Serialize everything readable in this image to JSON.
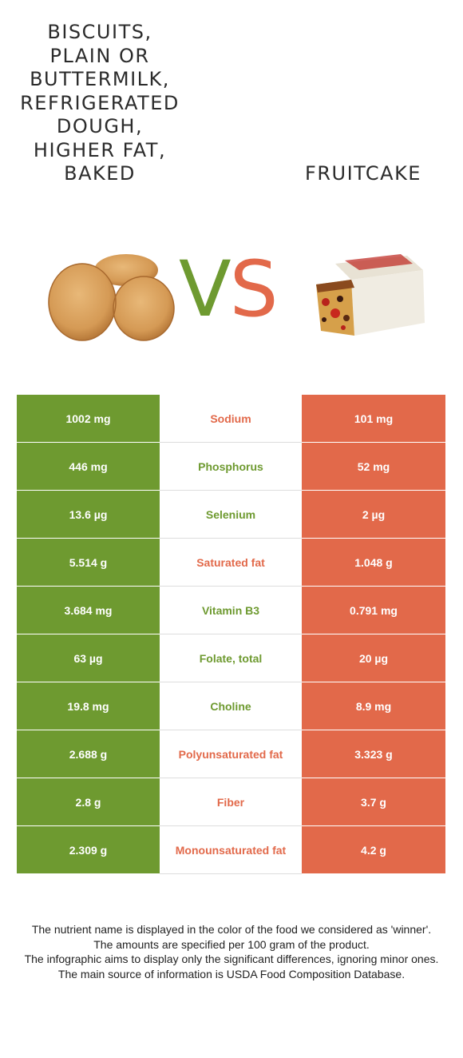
{
  "left_food": {
    "name": "BISCUITS,\nPLAIN OR\nBUTTERMILK,\nREFRIGERATED\nDOUGH,\nHIGHER FAT,\nBAKED",
    "lines": [
      "BISCUITS,",
      "PLAIN OR",
      "BUTTERMILK,",
      "REFRIGERATED",
      "DOUGH,",
      "HIGHER FAT,",
      "BAKED"
    ]
  },
  "right_food": {
    "name": "FRUITCAKE"
  },
  "vs": {
    "v": "V",
    "s": "S"
  },
  "colors": {
    "left": "#6e9a30",
    "right": "#e2694a"
  },
  "rows": [
    {
      "nutrient": "Sodium",
      "left": "1002 mg",
      "right": "101 mg",
      "winner": "right"
    },
    {
      "nutrient": "Phosphorus",
      "left": "446 mg",
      "right": "52 mg",
      "winner": "left"
    },
    {
      "nutrient": "Selenium",
      "left": "13.6 µg",
      "right": "2 µg",
      "winner": "left"
    },
    {
      "nutrient": "Saturated fat",
      "left": "5.514 g",
      "right": "1.048 g",
      "winner": "right"
    },
    {
      "nutrient": "Vitamin B3",
      "left": "3.684 mg",
      "right": "0.791 mg",
      "winner": "left"
    },
    {
      "nutrient": "Folate, total",
      "left": "63 µg",
      "right": "20 µg",
      "winner": "left"
    },
    {
      "nutrient": "Choline",
      "left": "19.8 mg",
      "right": "8.9 mg",
      "winner": "left"
    },
    {
      "nutrient": "Polyunsaturated fat",
      "left": "2.688 g",
      "right": "3.323 g",
      "winner": "right"
    },
    {
      "nutrient": "Fiber",
      "left": "2.8 g",
      "right": "3.7 g",
      "winner": "right"
    },
    {
      "nutrient": "Monounsaturated fat",
      "left": "2.309 g",
      "right": "4.2 g",
      "winner": "right"
    }
  ],
  "footer": {
    "line1": "The nutrient name is displayed in the color of the food we considered as 'winner'.",
    "line2": "The amounts are specified per 100 gram of the product.",
    "line3": "The infographic aims to display only the significant differences, ignoring minor ones.",
    "line4": "The main source of information is USDA Food Composition Database."
  }
}
